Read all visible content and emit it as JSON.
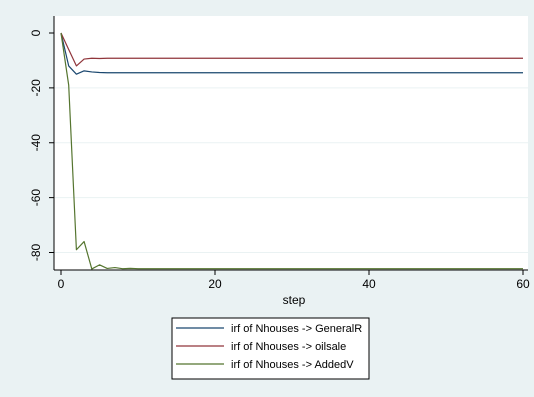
{
  "chart_data": {
    "type": "line",
    "xlabel": "step",
    "ylabel": "",
    "xlim": [
      0,
      60
    ],
    "ylim": [
      -90,
      0
    ],
    "x_ticks": [
      0,
      20,
      40,
      60
    ],
    "y_ticks": [
      0,
      -20,
      -40,
      -60,
      -80
    ],
    "grid": "horizontal",
    "legend_position": "bottom",
    "series": [
      {
        "name": "irf of Nhouses -> GeneralR",
        "color": "#1a476f",
        "x": [
          0,
          1,
          2,
          3,
          4,
          5,
          6,
          7,
          8,
          10,
          15,
          20,
          30,
          40,
          50,
          60
        ],
        "y": [
          0,
          -12,
          -15,
          -13.8,
          -14.2,
          -14.4,
          -14.5,
          -14.5,
          -14.5,
          -14.5,
          -14.5,
          -14.5,
          -14.5,
          -14.5,
          -14.5,
          -14.5
        ]
      },
      {
        "name": "irf of Nhouses -> oilsale",
        "color": "#90353b",
        "x": [
          0,
          1,
          2,
          3,
          4,
          5,
          6,
          7,
          8,
          10,
          15,
          20,
          30,
          40,
          50,
          60
        ],
        "y": [
          0,
          -6,
          -12,
          -9.5,
          -9.2,
          -9.3,
          -9.2,
          -9.2,
          -9.2,
          -9.2,
          -9.2,
          -9.2,
          -9.2,
          -9.2,
          -9.2,
          -9.2
        ]
      },
      {
        "name": "irf of Nhouses -> AddedV",
        "color": "#55752f",
        "x": [
          0,
          1,
          2,
          3,
          4,
          5,
          6,
          7,
          8,
          9,
          10,
          15,
          20,
          30,
          40,
          50,
          60
        ],
        "y": [
          0,
          -19,
          -79,
          -76,
          -86,
          -84.5,
          -85.8,
          -85.5,
          -85.9,
          -85.8,
          -85.9,
          -85.9,
          -85.9,
          -85.9,
          -85.9,
          -85.9,
          -85.9
        ]
      }
    ]
  }
}
